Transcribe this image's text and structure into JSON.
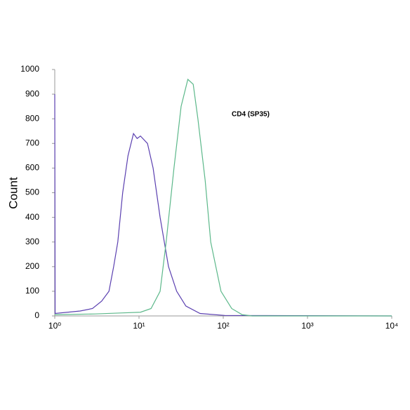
{
  "chart_data": {
    "type": "line",
    "ylabel": "Count",
    "annotation": "CD4 (SP35)",
    "xscale": "log",
    "xlim": [
      1,
      10000
    ],
    "ylim": [
      0,
      1000
    ],
    "xticks": [
      {
        "value": 1,
        "label": "10⁰"
      },
      {
        "value": 10,
        "label": "10¹"
      },
      {
        "value": 100,
        "label": "10²"
      },
      {
        "value": 1000,
        "label": "10³"
      },
      {
        "value": 10000,
        "label": "10⁴"
      }
    ],
    "yticks": [
      0,
      100,
      200,
      300,
      400,
      500,
      600,
      700,
      800,
      900,
      1000
    ],
    "series": [
      {
        "color": "#5a3fb0",
        "x": [
          1,
          1.01,
          2,
          2.8,
          3.6,
          4.4,
          5,
          5.6,
          6.4,
          7.4,
          8.6,
          9.5,
          10.4,
          12.6,
          14.7,
          17.8,
          22.4,
          28,
          36,
          53,
          104,
          10000
        ],
        "values": [
          900,
          10,
          20,
          30,
          60,
          100,
          200,
          300,
          500,
          650,
          740,
          720,
          730,
          700,
          600,
          400,
          200,
          100,
          40,
          10,
          2,
          0
        ]
      },
      {
        "color": "#5cb88a",
        "x": [
          1,
          3,
          6,
          10.4,
          13.9,
          17.8,
          21,
          26,
          31.6,
          38,
          44,
          50,
          61,
          71,
          94,
          126,
          168,
          220,
          10000
        ],
        "values": [
          5,
          8,
          12,
          15,
          30,
          100,
          300,
          600,
          850,
          960,
          940,
          800,
          550,
          300,
          100,
          30,
          5,
          0,
          0
        ]
      }
    ]
  }
}
